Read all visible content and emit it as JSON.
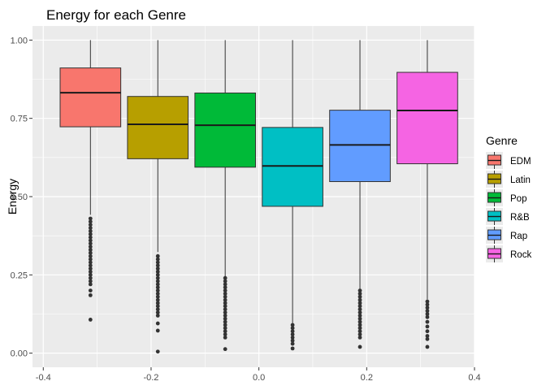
{
  "chart_data": {
    "type": "boxplot",
    "title": "Energy for each Genre",
    "xlabel": "",
    "ylabel": "Energy",
    "xlim": [
      -0.42,
      0.4
    ],
    "ylim": [
      -0.045,
      1.045
    ],
    "x_ticks": [
      -0.4,
      -0.2,
      0.0,
      0.2,
      0.4
    ],
    "x_tick_labels": [
      "-0.4",
      "-0.2",
      "0.0",
      "0.2",
      "0.4"
    ],
    "y_ticks": [
      0.0,
      0.25,
      0.5,
      0.75,
      1.0
    ],
    "y_tick_labels": [
      "0.00",
      "0.25",
      "0.50",
      "0.75",
      "1.00"
    ],
    "grid": true,
    "legend": {
      "title": "Genre",
      "position": "right"
    },
    "series": [
      {
        "name": "EDM",
        "color": "#F8766D",
        "x": -0.3125,
        "width": 0.1125,
        "q1": 0.723,
        "median": 0.832,
        "q3": 0.911,
        "whisker_low": 0.442,
        "whisker_high": 1.0,
        "outliers": [
          0.43,
          0.42,
          0.41,
          0.4,
          0.39,
          0.38,
          0.37,
          0.36,
          0.35,
          0.34,
          0.33,
          0.32,
          0.31,
          0.3,
          0.29,
          0.28,
          0.27,
          0.26,
          0.25,
          0.24,
          0.23,
          0.22,
          0.2,
          0.185,
          0.107
        ]
      },
      {
        "name": "Latin",
        "color": "#B79F00",
        "x": -0.1875,
        "width": 0.1125,
        "q1": 0.621,
        "median": 0.731,
        "q3": 0.82,
        "whisker_low": 0.323,
        "whisker_high": 1.0,
        "outliers": [
          0.31,
          0.3,
          0.29,
          0.28,
          0.27,
          0.26,
          0.25,
          0.24,
          0.23,
          0.22,
          0.21,
          0.2,
          0.19,
          0.18,
          0.17,
          0.16,
          0.15,
          0.14,
          0.13,
          0.12,
          0.095,
          0.072,
          0.005
        ]
      },
      {
        "name": "Pop",
        "color": "#00BA38",
        "x": -0.0625,
        "width": 0.1125,
        "q1": 0.594,
        "median": 0.728,
        "q3": 0.831,
        "whisker_low": 0.245,
        "whisker_high": 1.0,
        "outliers": [
          0.24,
          0.23,
          0.22,
          0.21,
          0.2,
          0.19,
          0.18,
          0.17,
          0.16,
          0.15,
          0.14,
          0.13,
          0.12,
          0.11,
          0.1,
          0.09,
          0.08,
          0.07,
          0.06,
          0.05,
          0.013
        ]
      },
      {
        "name": "R&B",
        "color": "#00BFC4",
        "x": 0.0625,
        "width": 0.1125,
        "q1": 0.469,
        "median": 0.598,
        "q3": 0.721,
        "whisker_low": 0.094,
        "whisker_high": 1.0,
        "outliers": [
          0.09,
          0.08,
          0.07,
          0.06,
          0.05,
          0.04,
          0.03,
          0.015
        ]
      },
      {
        "name": "Rap",
        "color": "#619CFF",
        "x": 0.1875,
        "width": 0.1125,
        "q1": 0.548,
        "median": 0.665,
        "q3": 0.776,
        "whisker_low": 0.205,
        "whisker_high": 1.0,
        "outliers": [
          0.2,
          0.19,
          0.18,
          0.17,
          0.16,
          0.15,
          0.14,
          0.13,
          0.12,
          0.11,
          0.1,
          0.09,
          0.08,
          0.07,
          0.06,
          0.05,
          0.02
        ]
      },
      {
        "name": "Rock",
        "color": "#F564E3",
        "x": 0.3125,
        "width": 0.1125,
        "q1": 0.605,
        "median": 0.775,
        "q3": 0.897,
        "whisker_low": 0.172,
        "whisker_high": 1.0,
        "outliers": [
          0.165,
          0.155,
          0.145,
          0.135,
          0.125,
          0.115,
          0.1,
          0.085,
          0.07,
          0.055,
          0.045,
          0.02
        ]
      }
    ]
  }
}
